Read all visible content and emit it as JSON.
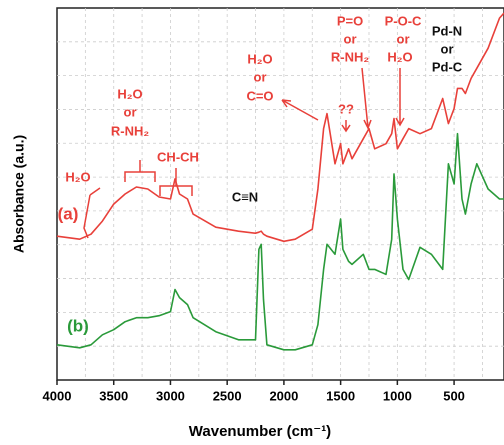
{
  "chart_data": {
    "type": "line",
    "xlabel": "Wavenumber (cm⁻¹)",
    "ylabel": "Absorbance (a.u.)",
    "x": [
      4000,
      3800,
      3700,
      3600,
      3500,
      3400,
      3300,
      3200,
      3100,
      3000,
      2960,
      2920,
      2850,
      2800,
      2600,
      2400,
      2250,
      2220,
      2200,
      2180,
      2150,
      2000,
      1900,
      1750,
      1700,
      1650,
      1620,
      1550,
      1500,
      1480,
      1430,
      1400,
      1300,
      1250,
      1200,
      1100,
      1050,
      1030,
      1000,
      950,
      900,
      800,
      700,
      600,
      550,
      500,
      470,
      430,
      400,
      350,
      300,
      200,
      100,
      60
    ],
    "series": [
      {
        "name": "(a)",
        "color": "#e8403a",
        "values": [
          143,
          140,
          145,
          158,
          175,
          185,
          192,
          190,
          182,
          180,
          200,
          185,
          180,
          165,
          152,
          148,
          146,
          147,
          148,
          145,
          143,
          138,
          140,
          150,
          190,
          250,
          265,
          215,
          235,
          215,
          230,
          220,
          240,
          250,
          230,
          235,
          245,
          260,
          230,
          240,
          250,
          245,
          250,
          280,
          255,
          270,
          290,
          290,
          285,
          300,
          310,
          330,
          360,
          365
        ]
      },
      {
        "name": "(b)",
        "color": "#2a9a3a",
        "values": [
          35,
          32,
          35,
          45,
          50,
          58,
          62,
          62,
          64,
          68,
          90,
          82,
          75,
          62,
          48,
          40,
          40,
          130,
          135,
          80,
          35,
          30,
          30,
          35,
          55,
          110,
          135,
          125,
          160,
          130,
          118,
          115,
          125,
          110,
          110,
          105,
          140,
          205,
          160,
          110,
          100,
          132,
          125,
          110,
          215,
          195,
          245,
          180,
          165,
          195,
          215,
          190,
          180,
          180
        ]
      }
    ],
    "xlim": [
      4000,
      60
    ],
    "xticks": [
      4000,
      3500,
      3000,
      2500,
      2000,
      1500,
      1000,
      500
    ],
    "ylim": [
      0,
      370
    ],
    "grid": true,
    "annotations": [
      "H₂O",
      "H₂O",
      "or",
      "R-NH₂",
      "CH-CH",
      "C≡N",
      "H₂O",
      "or",
      "C=O",
      "P=O",
      "or",
      "R-NH₂",
      "??",
      "P-O-C",
      "or",
      "H₂O",
      "Pd-N",
      "or",
      "Pd-C"
    ]
  }
}
